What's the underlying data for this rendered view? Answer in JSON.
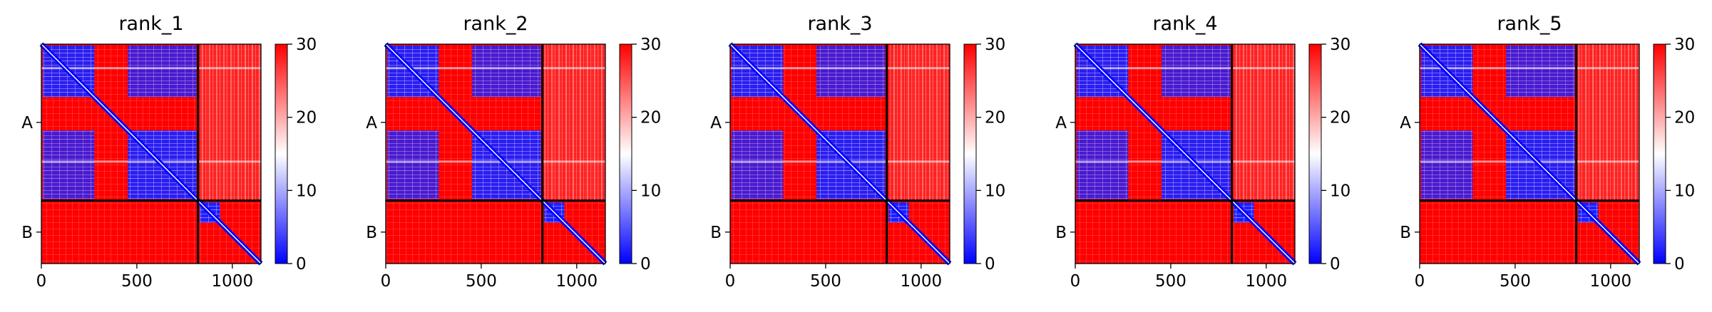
{
  "chart_data": {
    "type": "heatmap",
    "colormap": {
      "low": "#0000ff",
      "mid": "#ffffff",
      "high": "#ff0000"
    },
    "colorbar": {
      "min": 0,
      "max": 30,
      "ticks": [
        "0",
        "10",
        "20",
        "30"
      ]
    },
    "x_ticks": [
      {
        "value": 0,
        "label": "0"
      },
      {
        "value": 500,
        "label": "500"
      },
      {
        "value": 1000,
        "label": "1000"
      }
    ],
    "x_range": [
      0,
      1150
    ],
    "chain_boundary": 820,
    "chains": [
      {
        "label": "A",
        "start": 0,
        "end": 820
      },
      {
        "label": "B",
        "start": 820,
        "end": 1150
      }
    ],
    "domains": [
      {
        "start": 0,
        "end": 285
      },
      {
        "start": 445,
        "end": 820
      },
      {
        "start": 830,
        "end": 935
      }
    ],
    "panels": [
      {
        "title": "rank_1"
      },
      {
        "title": "rank_2"
      },
      {
        "title": "rank_3"
      },
      {
        "title": "rank_4"
      },
      {
        "title": "rank_5"
      }
    ]
  }
}
